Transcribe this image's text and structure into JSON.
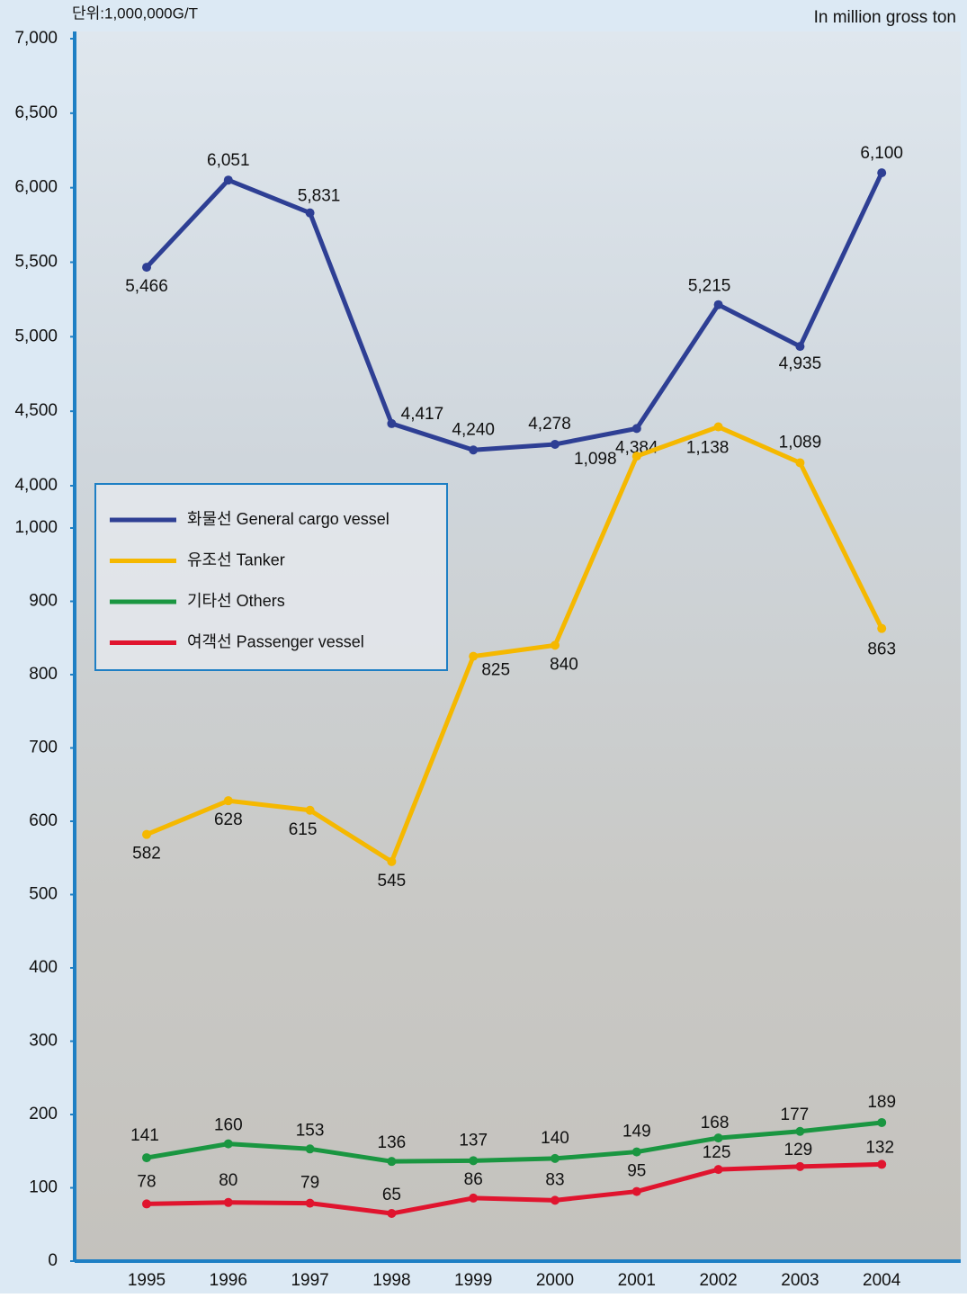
{
  "chart_data": {
    "type": "line",
    "unit_label": "단위:1,000,000G/T",
    "unit_label_en": "In million gross ton",
    "categories": [
      "1995",
      "1996",
      "1997",
      "1998",
      "1999",
      "2000",
      "2001",
      "2002",
      "2003",
      "2004"
    ],
    "ylim": [
      0,
      1000
    ],
    "yticks": [
      0,
      100,
      200,
      300,
      400,
      500,
      600,
      700,
      800,
      900,
      {
        "value": 1000,
        "label": "1,000"
      }
    ],
    "y2lim": [
      4000,
      7000
    ],
    "y2ticks": [
      {
        "value": 4000,
        "label": "4,000"
      },
      {
        "value": 4500,
        "label": "4,500"
      },
      {
        "value": 5000,
        "label": "5,000"
      },
      {
        "value": 5500,
        "label": "5,500"
      },
      {
        "value": 6000,
        "label": "6,000"
      },
      {
        "value": 6500,
        "label": "6,500"
      },
      {
        "value": 7000,
        "label": "7,000"
      }
    ],
    "series": [
      {
        "name": "화물선 General cargo vessel",
        "color": "#2e3f94",
        "axis": "y2",
        "values": [
          5466,
          6051,
          5831,
          4417,
          4240,
          4278,
          4384,
          5215,
          4935,
          6100
        ],
        "value_labels": [
          "5,466",
          "6,051",
          "5,831",
          "4,417",
          "4,240",
          "4,278",
          "4,384",
          "5,215",
          "4,935",
          "6,100"
        ]
      },
      {
        "name": "유조선 Tanker",
        "color": "#f5b800",
        "values": [
          582,
          628,
          615,
          545,
          825,
          840,
          1098,
          1138,
          1089,
          863
        ],
        "value_labels": [
          "582",
          "628",
          "615",
          "545",
          "825",
          "840",
          "1,098",
          "1,138",
          "1,089",
          "863"
        ]
      },
      {
        "name": "기타선 Others",
        "color": "#1a9641",
        "values": [
          141,
          160,
          153,
          136,
          137,
          140,
          149,
          168,
          177,
          189
        ]
      },
      {
        "name": "여객선 Passenger vessel",
        "color": "#e0142e",
        "values": [
          78,
          80,
          79,
          65,
          86,
          83,
          95,
          125,
          129,
          132
        ]
      }
    ]
  }
}
